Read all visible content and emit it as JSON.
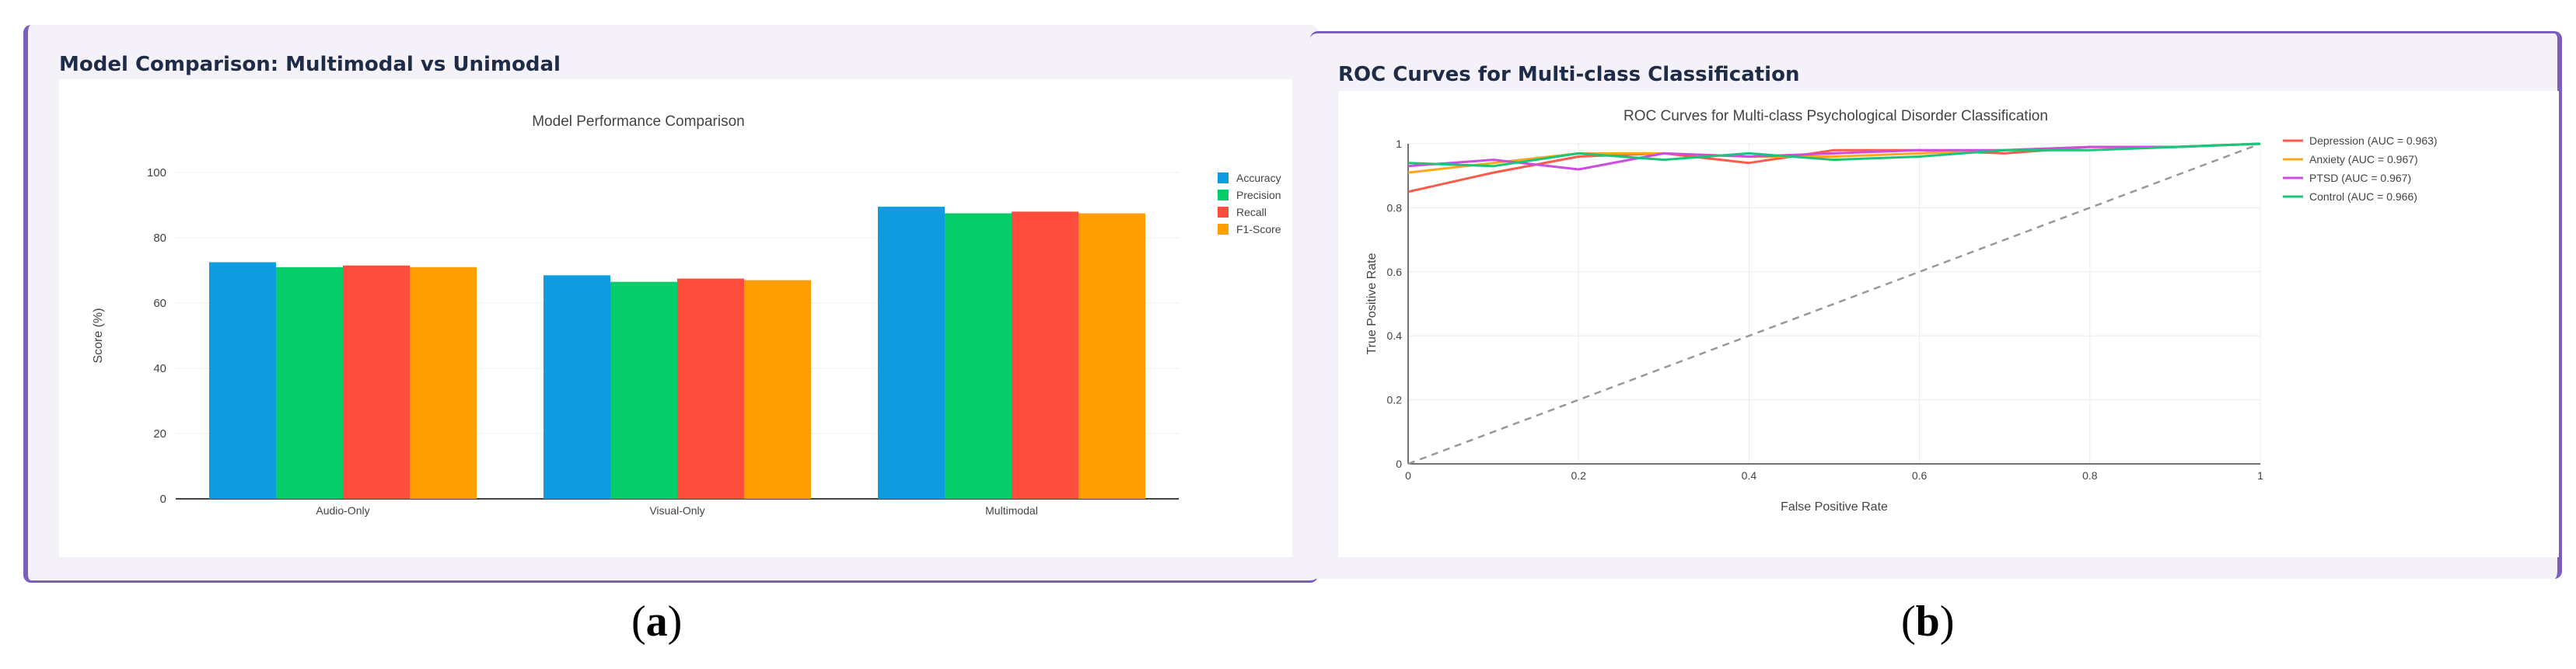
{
  "panel_a": {
    "header": "Model Comparison: Multimodal vs Unimodal",
    "caption_open": "(",
    "caption_letter": "a",
    "caption_close": ")"
  },
  "panel_b": {
    "header": "ROC Curves for Multi-class Classification",
    "caption_open": "(",
    "caption_letter": "b",
    "caption_close": ")"
  },
  "chart_data": [
    {
      "type": "bar",
      "title": "Model Performance Comparison",
      "xlabel": "",
      "ylabel": "Score (%)",
      "ylim": [
        0,
        100
      ],
      "yticks": [
        0,
        20,
        40,
        60,
        80,
        100
      ],
      "categories": [
        "Audio-Only",
        "Visual-Only",
        "Multimodal"
      ],
      "series": [
        {
          "name": "Accuracy",
          "color": "#0e9be0",
          "values": [
            72.5,
            68.5,
            89.5
          ]
        },
        {
          "name": "Precision",
          "color": "#06cd6a",
          "values": [
            71,
            66.5,
            87.5
          ]
        },
        {
          "name": "Recall",
          "color": "#ff4d3d",
          "values": [
            71.5,
            67.5,
            88
          ]
        },
        {
          "name": "F1-Score",
          "color": "#ff9e00",
          "values": [
            71,
            67,
            87.5
          ]
        }
      ],
      "legend": "top-right",
      "grid": true
    },
    {
      "type": "line",
      "title": "ROC Curves for Multi-class Psychological Disorder Classification",
      "xlabel": "False Positive Rate",
      "ylabel": "True Positive Rate",
      "xlim": [
        0,
        1
      ],
      "ylim": [
        0,
        1
      ],
      "xticks": [
        "0",
        "0.2",
        "0.4",
        "0.6",
        "0.8",
        "1"
      ],
      "yticks": [
        "0",
        "0.2",
        "0.4",
        "0.6",
        "0.8",
        "1"
      ],
      "x": [
        0,
        0.1,
        0.2,
        0.3,
        0.4,
        0.5,
        0.6,
        0.7,
        0.8,
        0.9,
        1.0
      ],
      "series": [
        {
          "name": "Depression (AUC = 0.963)",
          "color": "#ff5a4a",
          "values": [
            0.85,
            0.91,
            0.96,
            0.97,
            0.94,
            0.98,
            0.98,
            0.97,
            0.99,
            0.99,
            1.0
          ]
        },
        {
          "name": "Anxiety (AUC = 0.967)",
          "color": "#ffa71c",
          "values": [
            0.91,
            0.94,
            0.97,
            0.97,
            0.96,
            0.96,
            0.97,
            0.98,
            0.99,
            0.99,
            1.0
          ]
        },
        {
          "name": "PTSD (AUC = 0.967)",
          "color": "#cc4de0",
          "values": [
            0.93,
            0.95,
            0.92,
            0.97,
            0.96,
            0.97,
            0.98,
            0.98,
            0.99,
            0.99,
            1.0
          ]
        },
        {
          "name": "Control (AUC = 0.966)",
          "color": "#1ac57a",
          "values": [
            0.94,
            0.93,
            0.97,
            0.95,
            0.97,
            0.95,
            0.96,
            0.98,
            0.98,
            0.99,
            1.0
          ]
        }
      ],
      "reference_line": {
        "style": "dashed",
        "color": "#999999",
        "x": [
          0,
          1
        ],
        "y": [
          0,
          1
        ]
      },
      "legend": "top-right",
      "grid": true
    }
  ]
}
